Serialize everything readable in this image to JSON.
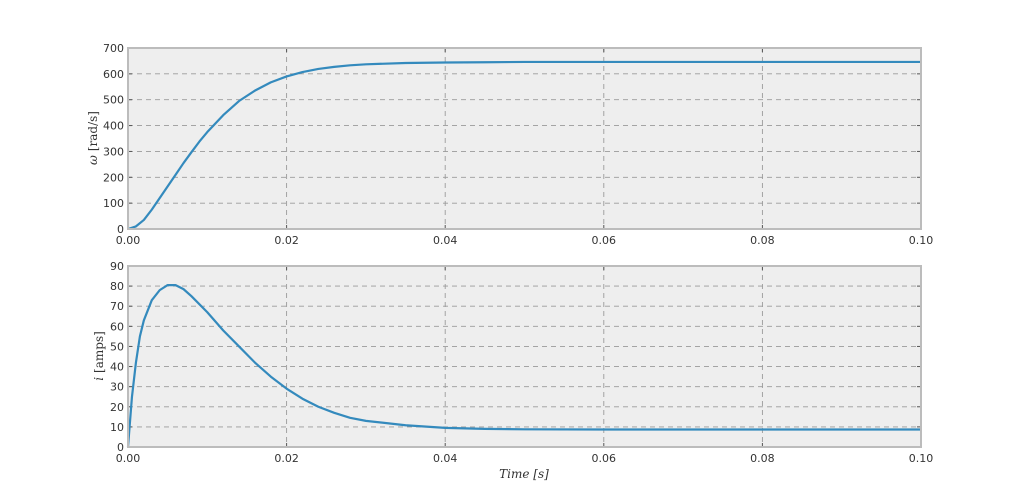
{
  "chart_data": [
    {
      "type": "line",
      "xlabel": "",
      "ylabel_symbol": "ω",
      "ylabel_unit": "[rad/s]",
      "xlim": [
        0,
        0.1
      ],
      "ylim": [
        0,
        700
      ],
      "xticks": [
        "0.00",
        "0.02",
        "0.04",
        "0.06",
        "0.08",
        "0.10"
      ],
      "yticks": [
        "0",
        "100",
        "200",
        "300",
        "400",
        "500",
        "600",
        "700"
      ],
      "grid": true,
      "line_color": "#348abd",
      "series": [
        {
          "x": [
            0,
            0.001,
            0.002,
            0.003,
            0.004,
            0.005,
            0.006,
            0.007,
            0.008,
            0.009,
            0.01,
            0.012,
            0.014,
            0.016,
            0.018,
            0.02,
            0.022,
            0.024,
            0.026,
            0.028,
            0.03,
            0.035,
            0.04,
            0.045,
            0.05,
            0.06,
            0.07,
            0.08,
            0.09,
            0.1
          ],
          "y": [
            0,
            10,
            35,
            75,
            120,
            165,
            210,
            255,
            297,
            338,
            375,
            440,
            495,
            535,
            567,
            590,
            607,
            619,
            627,
            633,
            637,
            642,
            644,
            645,
            646,
            646,
            646,
            646,
            646,
            646
          ]
        }
      ]
    },
    {
      "type": "line",
      "xlabel": "Time [s]",
      "ylabel_symbol": "i",
      "ylabel_unit": "[amps]",
      "xlim": [
        0,
        0.1
      ],
      "ylim": [
        0,
        90
      ],
      "xticks": [
        "0.00",
        "0.02",
        "0.04",
        "0.06",
        "0.08",
        "0.10"
      ],
      "yticks": [
        "0",
        "10",
        "20",
        "30",
        "40",
        "50",
        "60",
        "70",
        "80",
        "90"
      ],
      "grid": true,
      "line_color": "#348abd",
      "series": [
        {
          "x": [
            0,
            0.0005,
            0.001,
            0.0015,
            0.002,
            0.003,
            0.004,
            0.005,
            0.006,
            0.007,
            0.008,
            0.01,
            0.012,
            0.014,
            0.016,
            0.018,
            0.02,
            0.022,
            0.024,
            0.026,
            0.028,
            0.03,
            0.035,
            0.04,
            0.045,
            0.05,
            0.06,
            0.07,
            0.08,
            0.09,
            0.1
          ],
          "y": [
            0,
            25,
            42,
            55,
            63,
            73,
            78,
            80.5,
            80.5,
            78.5,
            75,
            67,
            58,
            50,
            42,
            35,
            29,
            24,
            20,
            17,
            14.5,
            13,
            10.8,
            9.5,
            9,
            8.8,
            8.7,
            8.7,
            8.7,
            8.7,
            8.7
          ]
        }
      ]
    }
  ]
}
